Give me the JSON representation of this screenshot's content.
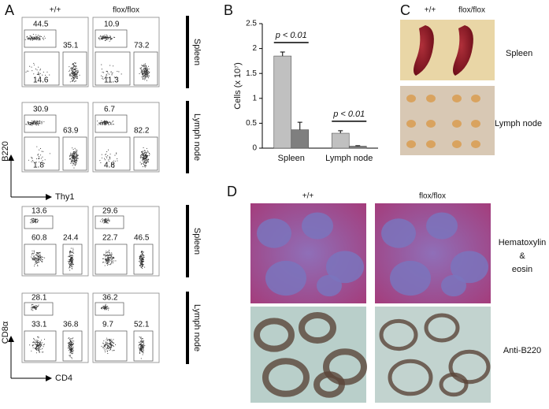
{
  "panel_labels": [
    "A",
    "B",
    "C",
    "D"
  ],
  "panel_a": {
    "columns": [
      "+/+",
      "flox/flox"
    ],
    "tissues": [
      "Spleen",
      "Lymph node",
      "Spleen",
      "Lymph node"
    ],
    "y_axis_labels": [
      "B220",
      "CD8α"
    ],
    "x_axis_labels": [
      "Thy1",
      "CD4"
    ],
    "plots": [
      [
        [
          "44.5",
          "35.1",
          "14.6"
        ],
        [
          "10.9",
          "73.2",
          "11.3"
        ]
      ],
      [
        [
          "30.9",
          "63.9",
          "1.8"
        ],
        [
          "6.7",
          "82.2",
          "4.8"
        ]
      ],
      [
        [
          "13.6",
          "24.4",
          "60.8"
        ],
        [
          "29.6",
          "46.5",
          "22.7"
        ]
      ],
      [
        [
          "28.1",
          "36.8",
          "33.1"
        ],
        [
          "36.2",
          "52.1",
          "9.7"
        ]
      ]
    ]
  },
  "chart_data": {
    "type": "bar",
    "ylabel": "Cells (x 10⁷)",
    "categories": [
      "Spleen",
      "Lymph node"
    ],
    "series": [
      {
        "name": "+/+",
        "color": "#c0c0c0",
        "values": [
          1.85,
          0.3
        ],
        "errors": [
          0.08,
          0.05
        ]
      },
      {
        "name": "flox/flox",
        "color": "#7f7f7f",
        "values": [
          0.37,
          0.04
        ],
        "errors": [
          0.15,
          0.01
        ]
      }
    ],
    "annotations": [
      "p < 0.01",
      "p < 0.01"
    ],
    "ylim": [
      0,
      2.5
    ],
    "yticks": [
      0,
      0.5,
      1,
      1.5,
      2,
      2.5
    ]
  },
  "panel_c": {
    "columns": [
      "+/+",
      "flox/flox"
    ],
    "rows": [
      "Spleen",
      "Lymph node"
    ]
  },
  "panel_d": {
    "columns": [
      "+/+",
      "flox/flox"
    ],
    "stain_1": [
      "Hematoxylin",
      "&",
      "eosin"
    ],
    "stain_2": "Anti-B220"
  }
}
